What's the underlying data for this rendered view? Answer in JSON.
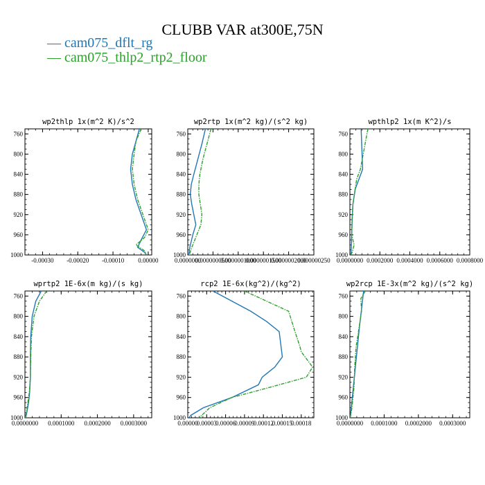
{
  "title": "CLUBB VAR at300E,75N",
  "legend": [
    {
      "label": "— cam075_dflt_rg",
      "color": "#1f77b4"
    },
    {
      "label": "— cam075_thlp2_rtp2_floor",
      "color": "#2ca02c"
    }
  ],
  "chart_data": [
    {
      "type": "line",
      "title": "wp2thlp   1x(m^2 K)/s^2",
      "xlim": [
        -0.00035,
        1e-05
      ],
      "ylim": [
        1000,
        750
      ],
      "y_ticks": [
        760,
        800,
        840,
        880,
        920,
        960,
        1000
      ],
      "x_ticks": [
        -0.0003,
        -0.0002,
        -0.0001,
        0.0
      ],
      "x_tick_labels": [
        "-0.00030",
        "-0.00020",
        "-0.00010",
        "0.00000"
      ],
      "series": [
        {
          "name": "cam075_dflt_rg",
          "color": "#1f77b4",
          "x": [
            -2.5e-05,
            -3.5e-05,
            -4.5e-05,
            -5e-05,
            -4.5e-05,
            -3.5e-05,
            -2e-05,
            -5e-06,
            -2e-05,
            -3e-05,
            -1e-05,
            -5e-06
          ],
          "y": [
            750,
            775,
            800,
            830,
            860,
            890,
            920,
            950,
            970,
            985,
            995,
            1000
          ]
        },
        {
          "name": "cam075_thlp2_rtp2_floor",
          "color": "#2ca02c",
          "x": [
            -2e-05,
            -3.5e-05,
            -4e-05,
            -4.5e-05,
            -4e-05,
            -3e-05,
            -1.5e-05,
            0.0,
            -1e-05,
            -3.5e-05,
            -1e-05,
            -5e-06
          ],
          "y": [
            750,
            775,
            800,
            830,
            860,
            890,
            920,
            950,
            965,
            980,
            992,
            1000
          ]
        }
      ]
    },
    {
      "type": "line",
      "title": "wp2rtp   1x(m^2 kg)/(s^2 kg)",
      "xlim": [
        0.0,
        2.5e-07
      ],
      "ylim": [
        1000,
        750
      ],
      "y_ticks": [
        760,
        800,
        840,
        880,
        920,
        960,
        1000
      ],
      "x_ticks": [
        0.0,
        5e-08,
        1e-07,
        1.5e-07,
        2e-07,
        2.5e-07
      ],
      "x_tick_labels": [
        "0.0000000",
        "0.0000000500",
        "0.0000001000",
        "0.0000001500",
        "0.0000002000",
        "0.000000250"
      ],
      "series": [
        {
          "name": "cam075_dflt_rg",
          "color": "#1f77b4",
          "x": [
            3.5e-08,
            2.8e-08,
            2e-08,
            1.2e-08,
            7e-09,
            5e-09,
            8e-09,
            1.2e-08,
            1.6e-08,
            1e-08,
            4e-09,
            2e-09
          ],
          "y": [
            750,
            780,
            810,
            840,
            860,
            880,
            900,
            920,
            940,
            960,
            985,
            1000
          ]
        },
        {
          "name": "cam075_thlp2_rtp2_floor",
          "color": "#2ca02c",
          "x": [
            4.6e-08,
            3.8e-08,
            3e-08,
            2.4e-08,
            2.2e-08,
            2.2e-08,
            2.5e-08,
            2.8e-08,
            2.6e-08,
            1.8e-08,
            8e-09,
            3e-09
          ],
          "y": [
            750,
            780,
            810,
            840,
            860,
            880,
            900,
            920,
            940,
            960,
            985,
            1000
          ]
        }
      ]
    },
    {
      "type": "line",
      "title": "wpthlp2   1x(m K^2)/s",
      "xlim": [
        0.0,
        0.0008
      ],
      "ylim": [
        1000,
        750
      ],
      "y_ticks": [
        760,
        800,
        840,
        880,
        920,
        960,
        1000
      ],
      "x_ticks": [
        0.0,
        0.0002,
        0.0004,
        0.0006,
        0.0008
      ],
      "x_tick_labels": [
        "0.0000000",
        "0.0002000",
        "0.0004000",
        "0.0006000",
        "0.0008000"
      ],
      "series": [
        {
          "name": "cam075_dflt_rg",
          "color": "#1f77b4",
          "x": [
            7.5e-05,
            8e-05,
            8.5e-05,
            6e-05,
            3.5e-05,
            2e-05,
            1.5e-05,
            1.2e-05,
            1e-05,
            8e-06,
            5e-06
          ],
          "y": [
            750,
            790,
            830,
            850,
            870,
            900,
            930,
            960,
            980,
            995,
            1000
          ]
        },
        {
          "name": "cam075_thlp2_rtp2_floor",
          "color": "#2ca02c",
          "x": [
            0.00012,
            9.5e-05,
            7e-05,
            4.5e-05,
            3.5e-05,
            2e-05,
            1.5e-05,
            1.2e-05,
            2.8e-05,
            1.5e-05,
            5e-06
          ],
          "y": [
            750,
            790,
            830,
            850,
            870,
            900,
            930,
            960,
            980,
            995,
            1000
          ]
        }
      ]
    },
    {
      "type": "line",
      "title": "wprtp2   1E-6x(m kg)/(s kg)",
      "xlim": [
        0.0,
        0.00035
      ],
      "ylim": [
        1000,
        750
      ],
      "y_ticks": [
        760,
        800,
        840,
        880,
        920,
        960,
        1000
      ],
      "x_ticks": [
        0.0,
        0.0001,
        0.0002,
        0.0003
      ],
      "x_tick_labels": [
        "0.0000000",
        "0.0001000",
        "0.0002000",
        "0.0003000"
      ],
      "series": [
        {
          "name": "cam075_dflt_rg",
          "color": "#1f77b4",
          "x": [
            4.5e-05,
            3e-05,
            2e-05,
            1.6e-05,
            1.5e-05,
            1.5e-05,
            1.3e-05,
            1e-05,
            5e-06,
            2e-06
          ],
          "y": [
            750,
            770,
            800,
            840,
            880,
            920,
            950,
            970,
            990,
            1000
          ]
        },
        {
          "name": "cam075_thlp2_rtp2_floor",
          "color": "#2ca02c",
          "x": [
            6e-05,
            4e-05,
            2.5e-05,
            1.8e-05,
            1.6e-05,
            1.5e-05,
            1.2e-05,
            8e-06,
            4e-06,
            1e-06
          ],
          "y": [
            750,
            770,
            800,
            840,
            880,
            920,
            950,
            970,
            990,
            1000
          ]
        }
      ]
    },
    {
      "type": "line",
      "title": "rcp2   1E-6x(kg^2)/(kg^2)",
      "xlim": [
        0.0,
        0.0002
      ],
      "ylim": [
        1000,
        750
      ],
      "y_ticks": [
        760,
        800,
        840,
        880,
        920,
        960,
        1000
      ],
      "x_ticks": [
        0.0,
        3e-05,
        6e-05,
        9e-05,
        0.00012,
        0.00015,
        0.00018
      ],
      "x_tick_labels": [
        "0.00000",
        "0.00003",
        "0.00006",
        "0.00009",
        "0.00012",
        "0.00015",
        "0.00018"
      ],
      "series": [
        {
          "name": "cam075_dflt_rg",
          "color": "#1f77b4",
          "x": [
            4e-05,
            7e-05,
            0.0001,
            0.000125,
            0.000145,
            0.000148,
            0.00015,
            0.000138,
            0.000118,
            0.000112,
            7e-05,
            2.5e-05,
            5e-06,
            2e-06
          ],
          "y": [
            750,
            770,
            790,
            810,
            830,
            860,
            880,
            900,
            920,
            935,
            960,
            980,
            995,
            1000
          ]
        },
        {
          "name": "cam075_thlp2_rtp2_floor",
          "color": "#2ca02c",
          "x": [
            9e-05,
            0.000125,
            0.00016,
            0.000165,
            0.00017,
            0.000178,
            0.00018,
            0.000198,
            0.000188,
            0.00013,
            7e-05,
            3.5e-05,
            1.8e-05
          ],
          "y": [
            750,
            770,
            790,
            810,
            830,
            860,
            870,
            900,
            920,
            940,
            960,
            980,
            1000
          ]
        }
      ]
    },
    {
      "type": "line",
      "title": "wp2rcp   1E-3x(m^2 kg)/(s^2 kg)",
      "xlim": [
        0.0,
        0.00035
      ],
      "ylim": [
        1000,
        750
      ],
      "y_ticks": [
        760,
        800,
        840,
        880,
        920,
        960,
        1000
      ],
      "x_ticks": [
        0.0,
        0.0001,
        0.0002,
        0.0003
      ],
      "x_tick_labels": [
        "0.0000000",
        "0.0001000",
        "0.0002000",
        "0.0003000"
      ],
      "series": [
        {
          "name": "cam075_dflt_rg",
          "color": "#1f77b4",
          "x": [
            4e-05,
            3.5e-05,
            2.8e-05,
            2.2e-05,
            1.6e-05,
            1e-05,
            4e-06,
            1e-06
          ],
          "y": [
            750,
            780,
            820,
            860,
            900,
            940,
            980,
            1000
          ]
        },
        {
          "name": "cam075_thlp2_rtp2_floor",
          "color": "#2ca02c",
          "x": [
            4.5e-05,
            3.2e-05,
            3.4e-05,
            2.5e-05,
            1.8e-05,
            1.4e-05,
            1.2e-05,
            6e-06,
            1e-06
          ],
          "y": [
            750,
            765,
            790,
            830,
            860,
            900,
            940,
            980,
            1000
          ]
        }
      ]
    }
  ]
}
